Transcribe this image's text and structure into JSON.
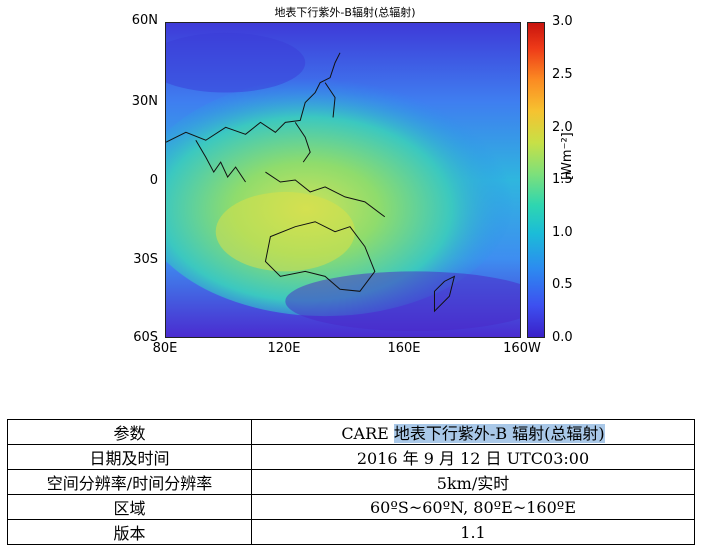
{
  "map": {
    "title": "地表下行紫外-B辐射(总辐射)",
    "y_ticks": [
      "60N",
      "30N",
      "0",
      "30S",
      "60S"
    ],
    "x_ticks": [
      "80E",
      "120E",
      "160E",
      "160W"
    ],
    "colorbar": {
      "ticks": [
        "3.0",
        "2.5",
        "2.0",
        "1.5",
        "1.0",
        "0.5",
        "0.0"
      ],
      "label": "[Wm⁻²]",
      "range": [
        0.0,
        3.0
      ],
      "colormap": [
        "#3a20c8",
        "#2c8cf0",
        "#2ed6b0",
        "#c8e046",
        "#f6c230",
        "#ee3a18",
        "#c8140e"
      ]
    }
  },
  "table": {
    "rows": [
      {
        "key": "参数",
        "value_prefix": "CARE ",
        "value_highlight": "地表下行紫外-B 辐射(总辐射)"
      },
      {
        "key": "日期及时间",
        "value": "2016 年 9 月 12 日 UTC03:00"
      },
      {
        "key": "空间分辨率/时间分辨率",
        "value": "5km/实时"
      },
      {
        "key": "区域",
        "value": "60ºS~60ºN, 80ºE~160ºE"
      },
      {
        "key": "版本",
        "value": "1.1"
      }
    ]
  }
}
